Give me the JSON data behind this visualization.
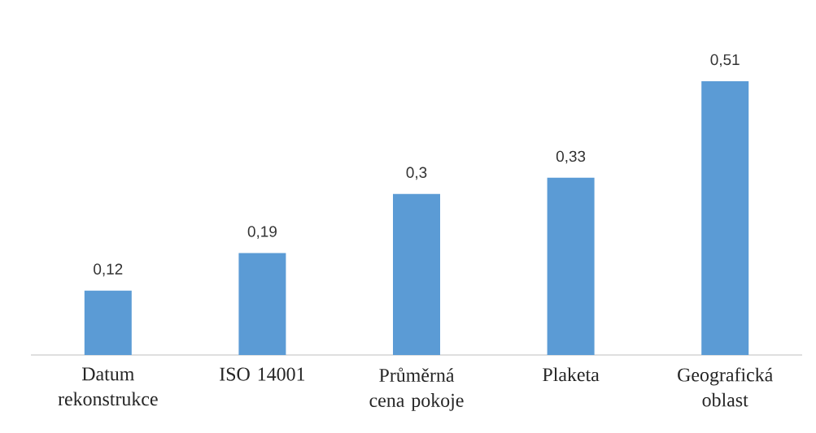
{
  "chart_data": {
    "type": "bar",
    "categories": [
      "Datum rekonstrukce",
      "ISO 14001",
      "Průměrná cena pokoje",
      "Plaketa",
      "Geografická oblast"
    ],
    "values": [
      0.12,
      0.19,
      0.3,
      0.33,
      0.51
    ],
    "value_labels": [
      "0,12",
      "0,19",
      "0,3",
      "0,33",
      "0,51"
    ],
    "color": "#5b9bd5",
    "grid": false
  }
}
